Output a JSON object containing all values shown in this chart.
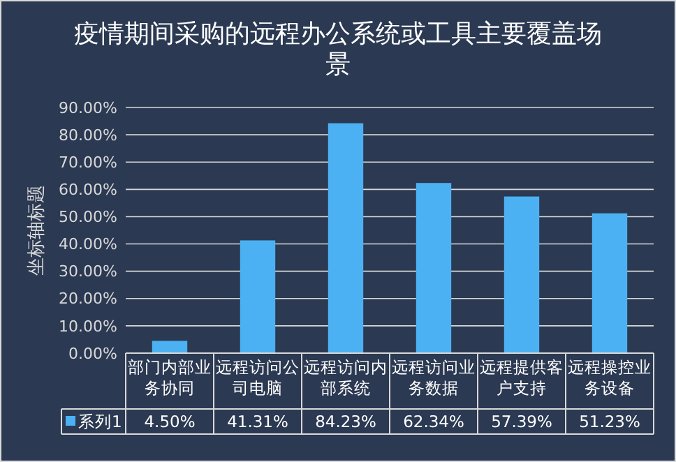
{
  "chart_data": {
    "type": "bar",
    "title": "疫情期间采购的远程办公系统或工具主要覆盖场景",
    "ylabel": "坐标轴标题",
    "categories": [
      "部门内部业务协同",
      "远程访问公司电脑",
      "远程访问内部系统",
      "远程访问业务数据",
      "远程提供客户支持",
      "远程操控业务设备"
    ],
    "series": [
      {
        "name": "系列1",
        "color": "#4cb1f2",
        "values": [
          4.5,
          41.31,
          84.23,
          62.34,
          57.39,
          51.23
        ],
        "value_labels": [
          "4.50%",
          "41.31%",
          "84.23%",
          "62.34%",
          "57.39%",
          "51.23%"
        ]
      }
    ],
    "ylim": [
      0,
      90
    ],
    "yticks": [
      {
        "value": 0,
        "label": "0.00%"
      },
      {
        "value": 10,
        "label": "10.00%"
      },
      {
        "value": 20,
        "label": "20.00%"
      },
      {
        "value": 30,
        "label": "30.00%"
      },
      {
        "value": 40,
        "label": "40.00%"
      },
      {
        "value": 50,
        "label": "50.00%"
      },
      {
        "value": 60,
        "label": "60.00%"
      },
      {
        "value": 70,
        "label": "70.00%"
      },
      {
        "value": 80,
        "label": "80.00%"
      },
      {
        "value": 90,
        "label": "90.00%"
      }
    ],
    "grid": "y",
    "legend": "bottom"
  }
}
